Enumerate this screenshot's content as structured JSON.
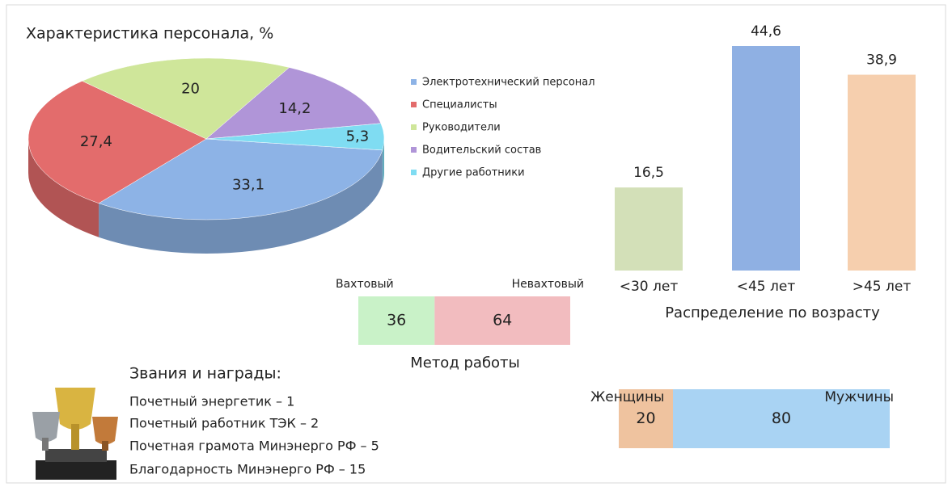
{
  "chart_data": [
    {
      "type": "pie",
      "title": "Характеристика персонала, %",
      "categories": [
        "Электротехнический персонал",
        "Специалисты",
        "Руководители",
        "Водительский состав",
        "Другие работники"
      ],
      "values": [
        33.1,
        27.4,
        20,
        14.2,
        5.3
      ],
      "value_labels": [
        "33,1",
        "27,4",
        "20",
        "14,2",
        "5,3"
      ],
      "colors": [
        "#8db3e6",
        "#e36c6c",
        "#cfe69a",
        "#b095d8",
        "#7fdcf2"
      ]
    },
    {
      "type": "bar",
      "title": "Распределение по возрасту",
      "categories": [
        "<30 лет",
        "<45 лет",
        ">45 лет"
      ],
      "values": [
        16.5,
        44.6,
        38.9
      ],
      "value_labels": [
        "16,5",
        "44,6",
        "38,9"
      ],
      "colors": [
        "#d3e0b8",
        "#8fb0e3",
        "#f6cfae"
      ]
    },
    {
      "type": "stacked-bar",
      "title": "Метод работы",
      "series": [
        {
          "name": "Вахтовый",
          "color": "#c9f2c8",
          "values": [
            36
          ]
        },
        {
          "name": "Невахтовый",
          "color": "#f2bcbf",
          "values": [
            64
          ]
        }
      ]
    },
    {
      "type": "stacked-bar",
      "series": [
        {
          "name": "Женщины",
          "color": "#efc39f",
          "values": [
            20
          ]
        },
        {
          "name": "Мужчины",
          "color": "#a9d3f3",
          "values": [
            80
          ]
        }
      ]
    }
  ],
  "awards": {
    "title": "Звания и награды:",
    "items": [
      "Почетный энергетик  – 1",
      "Почетный работник ТЭК –  2",
      "Почетная грамота Минэнерго РФ – 5",
      "Благодарность  Минэнерго РФ – 15"
    ]
  }
}
